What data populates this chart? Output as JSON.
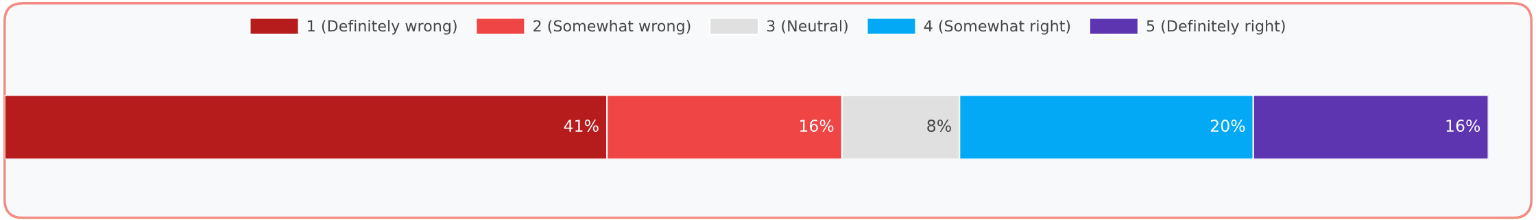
{
  "chart_data": {
    "type": "bar",
    "orientation": "horizontal",
    "stacked": true,
    "categories": [
      null
    ],
    "legend": "top",
    "series": [
      {
        "name": "1 (Definitely wrong)",
        "color": "#b71c1c",
        "values": [
          41
        ],
        "value_labels": [
          "41%"
        ]
      },
      {
        "name": "2 (Somewhat wrong)",
        "color": "#ef4545",
        "values": [
          16
        ],
        "value_labels": [
          "16%"
        ]
      },
      {
        "name": "3 (Neutral)",
        "color": "#e0e0e0",
        "values": [
          8
        ],
        "value_labels": [
          "8%"
        ]
      },
      {
        "name": "4 (Somewhat right)",
        "color": "#03a9f4",
        "values": [
          20
        ],
        "value_labels": [
          "20%"
        ]
      },
      {
        "name": "5 (Definitely right)",
        "color": "#5e35b1",
        "values": [
          16
        ],
        "value_labels": [
          "16%"
        ]
      }
    ]
  }
}
